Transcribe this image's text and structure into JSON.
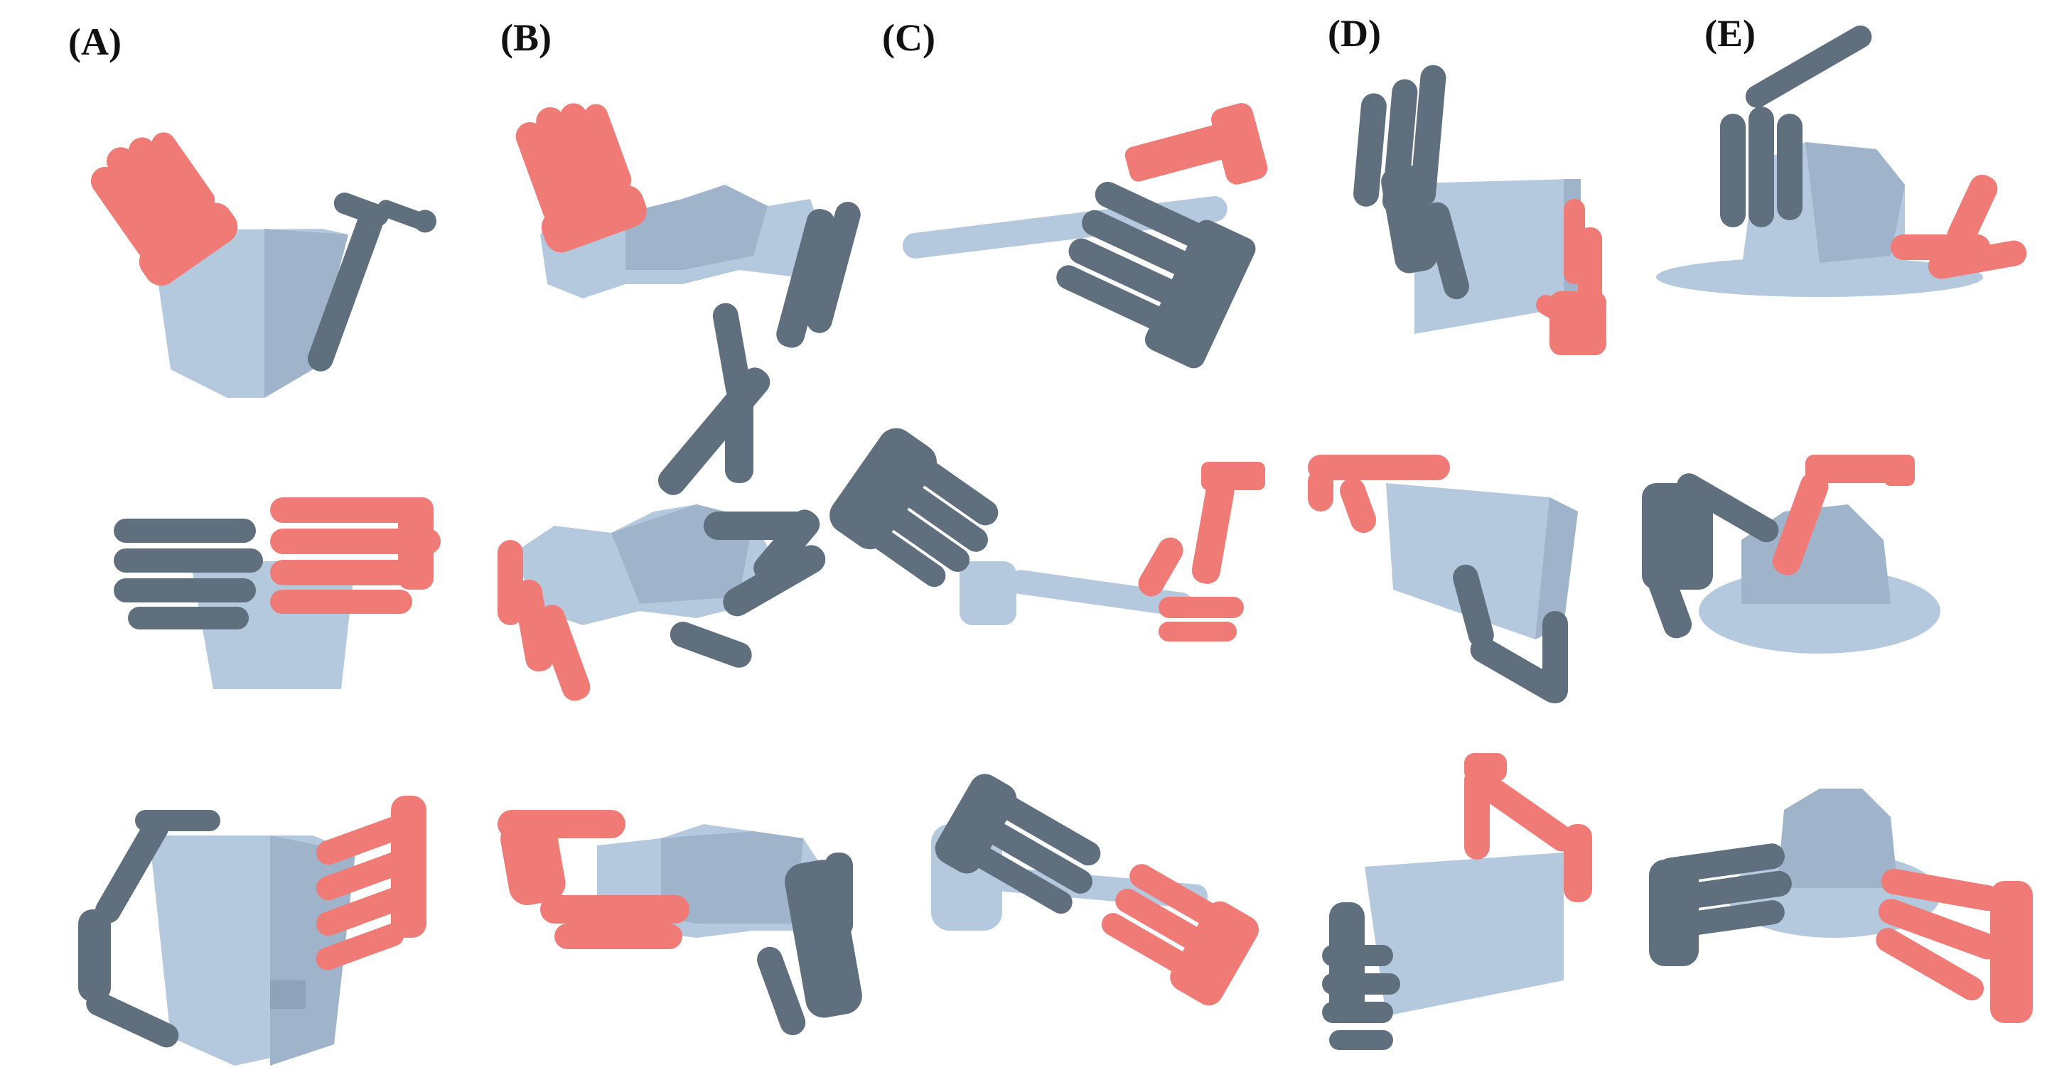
{
  "labels": {
    "a": "(A)",
    "b": "(B)",
    "c": "(C)",
    "d": "(D)",
    "e": "(E)"
  },
  "colors": {
    "object": "#b4c8de",
    "object_shade": "#9fb3ca",
    "left_hand": "#f07b76",
    "left_hand_shade": "#d9625e",
    "right_hand": "#5f6f7d",
    "right_hand_shade": "#4a5864"
  },
  "objects": [
    "bucket",
    "brick-bundle",
    "hammer",
    "box",
    "hat"
  ]
}
